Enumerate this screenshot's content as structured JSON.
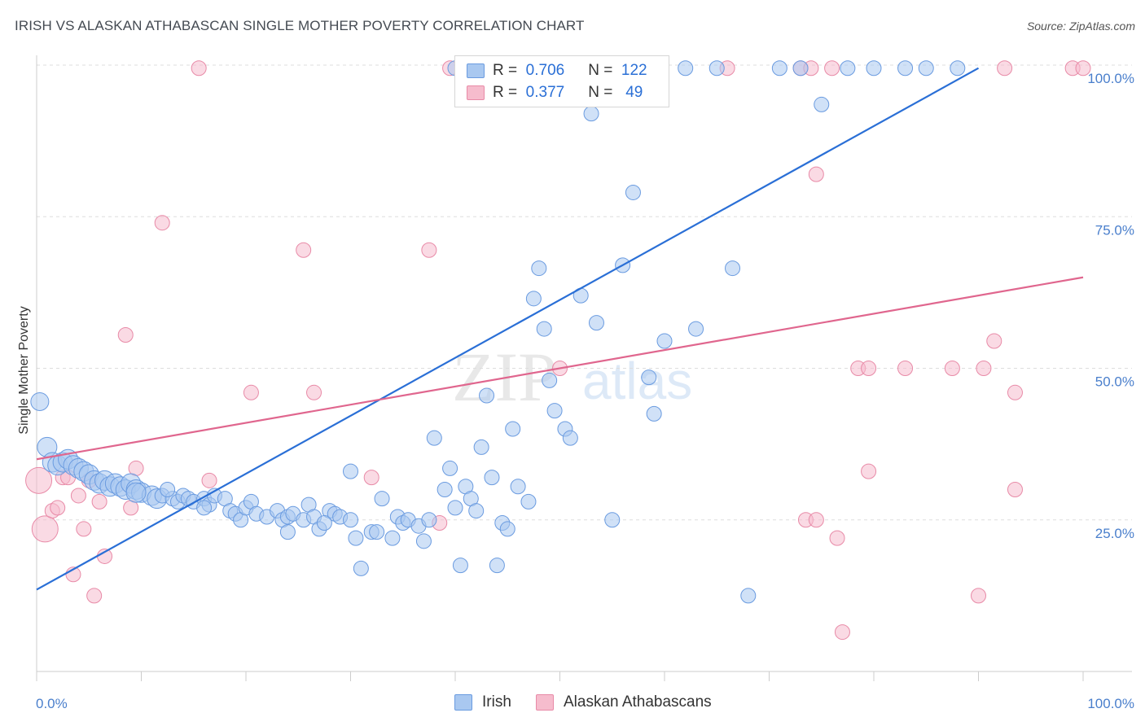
{
  "header": {
    "title": "IRISH VS ALASKAN ATHABASCAN SINGLE MOTHER POVERTY CORRELATION CHART",
    "source": "Source: ZipAtlas.com"
  },
  "legend": {
    "irish": {
      "r_label": "R =",
      "r_value": "0.706",
      "n_label": "N =",
      "n_value": "122"
    },
    "alaskan": {
      "r_label": "R =",
      "r_value": "0.377",
      "n_label": "N =",
      "n_value": "49"
    }
  },
  "bottom_legend": {
    "irish": "Irish",
    "alaskan": "Alaskan Athabascans"
  },
  "colors": {
    "irish_fill": "#a9c8f0",
    "irish_stroke": "#6a9be0",
    "irish_line": "#2a6fd6",
    "alaskan_fill": "#f6bccd",
    "alaskan_stroke": "#e88aa7",
    "alaskan_line": "#e0668e",
    "tick_text": "#4a7fcc",
    "grid": "#dddddd"
  },
  "watermark": {
    "zip": "ZIP",
    "atlas": "atlas"
  },
  "chart_data": {
    "type": "scatter",
    "title": "IRISH VS ALASKAN ATHABASCAN SINGLE MOTHER POVERTY CORRELATION CHART",
    "xlabel": "",
    "ylabel": "Single Mother Poverty",
    "xlim": [
      0,
      100
    ],
    "ylim": [
      0,
      100
    ],
    "x_tick_labels": [
      "0.0%",
      "100.0%"
    ],
    "y_tick_labels": [
      "25.0%",
      "50.0%",
      "75.0%",
      "100.0%"
    ],
    "y_ticks": [
      25,
      50,
      75,
      100
    ],
    "grid": true,
    "legend_position": "top-center",
    "series": [
      {
        "name": "Irish",
        "R": 0.706,
        "N": 122,
        "trend": {
          "x": [
            0,
            90
          ],
          "y": [
            13.5,
            99.5
          ]
        },
        "points": [
          {
            "x": 0.3,
            "y": 44.5
          },
          {
            "x": 1.0,
            "y": 37.0
          },
          {
            "x": 1.5,
            "y": 34.5
          },
          {
            "x": 2.0,
            "y": 34.0
          },
          {
            "x": 2.5,
            "y": 34.5
          },
          {
            "x": 3.0,
            "y": 35.0
          },
          {
            "x": 3.5,
            "y": 34.0
          },
          {
            "x": 4.0,
            "y": 33.5
          },
          {
            "x": 4.5,
            "y": 33.0
          },
          {
            "x": 5.0,
            "y": 32.5
          },
          {
            "x": 5.5,
            "y": 31.5
          },
          {
            "x": 6.0,
            "y": 31.0
          },
          {
            "x": 6.5,
            "y": 31.5
          },
          {
            "x": 7.0,
            "y": 30.5
          },
          {
            "x": 7.5,
            "y": 31.0
          },
          {
            "x": 8.0,
            "y": 30.5
          },
          {
            "x": 8.5,
            "y": 30.0
          },
          {
            "x": 9.0,
            "y": 31.0
          },
          {
            "x": 9.5,
            "y": 30.0
          },
          {
            "x": 10.0,
            "y": 29.5
          },
          {
            "x": 11.0,
            "y": 29.0
          },
          {
            "x": 11.5,
            "y": 28.5
          },
          {
            "x": 12.0,
            "y": 29.0
          },
          {
            "x": 13.0,
            "y": 28.5
          },
          {
            "x": 13.5,
            "y": 28.0
          },
          {
            "x": 14.0,
            "y": 29.0
          },
          {
            "x": 14.5,
            "y": 28.5
          },
          {
            "x": 15.0,
            "y": 28.0
          },
          {
            "x": 16.0,
            "y": 28.5
          },
          {
            "x": 16.5,
            "y": 27.5
          },
          {
            "x": 17.0,
            "y": 29.0
          },
          {
            "x": 18.0,
            "y": 28.5
          },
          {
            "x": 18.5,
            "y": 26.5
          },
          {
            "x": 19.0,
            "y": 26.0
          },
          {
            "x": 19.5,
            "y": 25.0
          },
          {
            "x": 20.0,
            "y": 27.0
          },
          {
            "x": 20.5,
            "y": 28.0
          },
          {
            "x": 21.0,
            "y": 26.0
          },
          {
            "x": 22.0,
            "y": 25.5
          },
          {
            "x": 23.0,
            "y": 26.5
          },
          {
            "x": 23.5,
            "y": 25.0
          },
          {
            "x": 24.0,
            "y": 25.5
          },
          {
            "x": 24.5,
            "y": 26.0
          },
          {
            "x": 25.5,
            "y": 25.0
          },
          {
            "x": 26.0,
            "y": 27.5
          },
          {
            "x": 26.5,
            "y": 25.5
          },
          {
            "x": 27.0,
            "y": 23.5
          },
          {
            "x": 28.0,
            "y": 26.5
          },
          {
            "x": 28.5,
            "y": 26.0
          },
          {
            "x": 29.0,
            "y": 25.5
          },
          {
            "x": 30.0,
            "y": 25.0
          },
          {
            "x": 30.5,
            "y": 22.0
          },
          {
            "x": 31.0,
            "y": 17.0
          },
          {
            "x": 32.0,
            "y": 23.0
          },
          {
            "x": 32.5,
            "y": 23.0
          },
          {
            "x": 33.0,
            "y": 28.5
          },
          {
            "x": 34.0,
            "y": 22.0
          },
          {
            "x": 34.5,
            "y": 25.5
          },
          {
            "x": 35.0,
            "y": 24.5
          },
          {
            "x": 35.5,
            "y": 25.0
          },
          {
            "x": 36.5,
            "y": 24.0
          },
          {
            "x": 37.0,
            "y": 21.5
          },
          {
            "x": 37.5,
            "y": 25.0
          },
          {
            "x": 38.0,
            "y": 38.5
          },
          {
            "x": 39.0,
            "y": 30.0
          },
          {
            "x": 39.5,
            "y": 33.5
          },
          {
            "x": 40.0,
            "y": 27.0
          },
          {
            "x": 40.5,
            "y": 17.5
          },
          {
            "x": 41.0,
            "y": 30.5
          },
          {
            "x": 41.5,
            "y": 28.5
          },
          {
            "x": 42.0,
            "y": 26.5
          },
          {
            "x": 42.5,
            "y": 37.0
          },
          {
            "x": 43.0,
            "y": 45.5
          },
          {
            "x": 43.5,
            "y": 32.0
          },
          {
            "x": 44.0,
            "y": 17.5
          },
          {
            "x": 44.5,
            "y": 24.5
          },
          {
            "x": 45.0,
            "y": 23.5
          },
          {
            "x": 45.5,
            "y": 40.0
          },
          {
            "x": 46.0,
            "y": 30.5
          },
          {
            "x": 47.0,
            "y": 28.0
          },
          {
            "x": 47.5,
            "y": 61.5
          },
          {
            "x": 48.0,
            "y": 66.5
          },
          {
            "x": 48.5,
            "y": 56.5
          },
          {
            "x": 49.0,
            "y": 48.0
          },
          {
            "x": 49.5,
            "y": 43.0
          },
          {
            "x": 50.5,
            "y": 40.0
          },
          {
            "x": 51.0,
            "y": 38.5
          },
          {
            "x": 52.0,
            "y": 62.0
          },
          {
            "x": 53.0,
            "y": 92.0
          },
          {
            "x": 53.5,
            "y": 57.5
          },
          {
            "x": 55.0,
            "y": 25.0
          },
          {
            "x": 56.0,
            "y": 67.0
          },
          {
            "x": 57.0,
            "y": 79.0
          },
          {
            "x": 58.5,
            "y": 48.5
          },
          {
            "x": 59.0,
            "y": 42.5
          },
          {
            "x": 60.0,
            "y": 54.5
          },
          {
            "x": 63.0,
            "y": 56.5
          },
          {
            "x": 66.5,
            "y": 66.5
          },
          {
            "x": 68.0,
            "y": 12.5
          },
          {
            "x": 71.0,
            "y": 99.5
          },
          {
            "x": 73.0,
            "y": 99.5
          },
          {
            "x": 75.0,
            "y": 93.5
          },
          {
            "x": 77.5,
            "y": 99.5
          },
          {
            "x": 80.0,
            "y": 99.5
          },
          {
            "x": 83.0,
            "y": 99.5
          },
          {
            "x": 85.0,
            "y": 99.5
          },
          {
            "x": 88.0,
            "y": 99.5
          },
          {
            "x": 40.0,
            "y": 99.5
          },
          {
            "x": 46.0,
            "y": 99.5
          },
          {
            "x": 50.0,
            "y": 99.5
          },
          {
            "x": 53.0,
            "y": 99.5
          },
          {
            "x": 56.0,
            "y": 99.5
          },
          {
            "x": 59.0,
            "y": 99.5
          },
          {
            "x": 62.0,
            "y": 99.5
          },
          {
            "x": 65.0,
            "y": 99.5
          },
          {
            "x": 43.0,
            "y": 99.5
          },
          {
            "x": 30.0,
            "y": 33.0
          },
          {
            "x": 16.0,
            "y": 27.0
          },
          {
            "x": 12.5,
            "y": 30.0
          },
          {
            "x": 9.5,
            "y": 29.5
          },
          {
            "x": 27.5,
            "y": 24.5
          },
          {
            "x": 24.0,
            "y": 23.0
          }
        ]
      },
      {
        "name": "Alaskan Athabascans",
        "R": 0.377,
        "N": 49,
        "trend": {
          "x": [
            0,
            100
          ],
          "y": [
            35.0,
            65.0
          ]
        },
        "points": [
          {
            "x": 0.2,
            "y": 31.5
          },
          {
            "x": 0.8,
            "y": 23.5
          },
          {
            "x": 1.5,
            "y": 26.5
          },
          {
            "x": 2.0,
            "y": 27.0
          },
          {
            "x": 2.5,
            "y": 32.0
          },
          {
            "x": 3.0,
            "y": 32.0
          },
          {
            "x": 3.5,
            "y": 16.0
          },
          {
            "x": 4.0,
            "y": 29.0
          },
          {
            "x": 4.5,
            "y": 23.5
          },
          {
            "x": 5.0,
            "y": 31.5
          },
          {
            "x": 5.5,
            "y": 12.5
          },
          {
            "x": 6.0,
            "y": 28.0
          },
          {
            "x": 6.5,
            "y": 19.0
          },
          {
            "x": 8.5,
            "y": 55.5
          },
          {
            "x": 9.0,
            "y": 27.0
          },
          {
            "x": 9.5,
            "y": 33.5
          },
          {
            "x": 12.0,
            "y": 74.0
          },
          {
            "x": 15.5,
            "y": 99.5
          },
          {
            "x": 16.5,
            "y": 31.5
          },
          {
            "x": 20.5,
            "y": 46.0
          },
          {
            "x": 25.5,
            "y": 69.5
          },
          {
            "x": 26.5,
            "y": 46.0
          },
          {
            "x": 32.0,
            "y": 32.0
          },
          {
            "x": 37.5,
            "y": 69.5
          },
          {
            "x": 38.5,
            "y": 24.5
          },
          {
            "x": 39.5,
            "y": 99.5
          },
          {
            "x": 50.0,
            "y": 50.0
          },
          {
            "x": 66.0,
            "y": 99.5
          },
          {
            "x": 73.0,
            "y": 99.5
          },
          {
            "x": 74.0,
            "y": 99.5
          },
          {
            "x": 76.0,
            "y": 99.5
          },
          {
            "x": 74.5,
            "y": 82.0
          },
          {
            "x": 73.5,
            "y": 25.0
          },
          {
            "x": 74.5,
            "y": 25.0
          },
          {
            "x": 76.5,
            "y": 22.0
          },
          {
            "x": 77.0,
            "y": 6.5
          },
          {
            "x": 78.5,
            "y": 50.0
          },
          {
            "x": 79.5,
            "y": 50.0
          },
          {
            "x": 79.5,
            "y": 33.0
          },
          {
            "x": 83.0,
            "y": 50.0
          },
          {
            "x": 87.5,
            "y": 50.0
          },
          {
            "x": 90.0,
            "y": 12.5
          },
          {
            "x": 90.5,
            "y": 50.0
          },
          {
            "x": 91.5,
            "y": 54.5
          },
          {
            "x": 92.5,
            "y": 99.5
          },
          {
            "x": 93.5,
            "y": 30.0
          },
          {
            "x": 93.5,
            "y": 46.0
          },
          {
            "x": 99.0,
            "y": 99.5
          },
          {
            "x": 100.0,
            "y": 99.5
          }
        ]
      }
    ]
  }
}
